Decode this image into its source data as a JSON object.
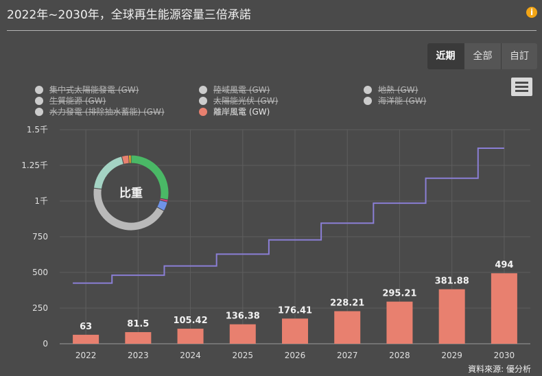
{
  "header": {
    "title": "2022年~2030年，全球再生能源容量三倍承諾",
    "info_icon": "info-icon",
    "info_glyph": "i"
  },
  "range_buttons": [
    {
      "label": "近期",
      "active": true
    },
    {
      "label": "全部",
      "active": false
    },
    {
      "label": "自訂",
      "active": false
    }
  ],
  "menu_icon": "hamburger-menu-icon",
  "legend": [
    {
      "label": "集中式太陽能發電 (GW)",
      "color": "#cccccc",
      "visible": false
    },
    {
      "label": "陸域風電 (GW)",
      "color": "#cccccc",
      "visible": false
    },
    {
      "label": "地熱 (GW)",
      "color": "#cccccc",
      "visible": false
    },
    {
      "label": "生質能源 (GW)",
      "color": "#cccccc",
      "visible": false
    },
    {
      "label": "太陽能光伏 (GW)",
      "color": "#cccccc",
      "visible": false
    },
    {
      "label": "海洋能 (GW)",
      "color": "#cccccc",
      "visible": false
    },
    {
      "label": "水力發電 (排除抽水蓄能) (GW)",
      "color": "#cccccc",
      "visible": false
    },
    {
      "label": "離岸風電 (GW)",
      "color": "#e8806f",
      "visible": true
    }
  ],
  "chart_data": {
    "type": "bar",
    "categories": [
      "2022",
      "2023",
      "2024",
      "2025",
      "2026",
      "2027",
      "2028",
      "2029",
      "2030"
    ],
    "series": [
      {
        "name": "離岸風電 (GW)",
        "type": "bar",
        "color": "#e8806f",
        "values": [
          63,
          81.5,
          105.42,
          136.38,
          176.41,
          228.21,
          295.21,
          381.88,
          494
        ],
        "data_labels": [
          "63",
          "81.5",
          "105.42",
          "136.38",
          "176.41",
          "228.21",
          "295.21",
          "381.88",
          "494"
        ]
      },
      {
        "type": "step-line",
        "color": "#8b7fd6",
        "values": [
          425,
          480,
          545,
          628,
          728,
          845,
          985,
          1160,
          1370
        ]
      }
    ],
    "yticks": [
      0,
      250,
      500,
      750,
      1000,
      1250,
      1500
    ],
    "ytick_labels": [
      "0",
      "250",
      "500",
      "750",
      "1千",
      "1.25千",
      "1.5千"
    ],
    "ylim": [
      0,
      1500
    ],
    "grid": true,
    "inset_pie": {
      "label": "比重",
      "slices": [
        {
          "value": 28,
          "color": "#4ab866"
        },
        {
          "value": 1,
          "color": "#d0457a"
        },
        {
          "value": 4,
          "color": "#6f93e8"
        },
        {
          "value": 44,
          "color": "#b9b9b9"
        },
        {
          "value": 19,
          "color": "#a4d3c4"
        },
        {
          "value": 3,
          "color": "#e8806f"
        },
        {
          "value": 1,
          "color": "#f0b429"
        }
      ]
    }
  },
  "footer": {
    "source": "資料來源: 優分析"
  }
}
